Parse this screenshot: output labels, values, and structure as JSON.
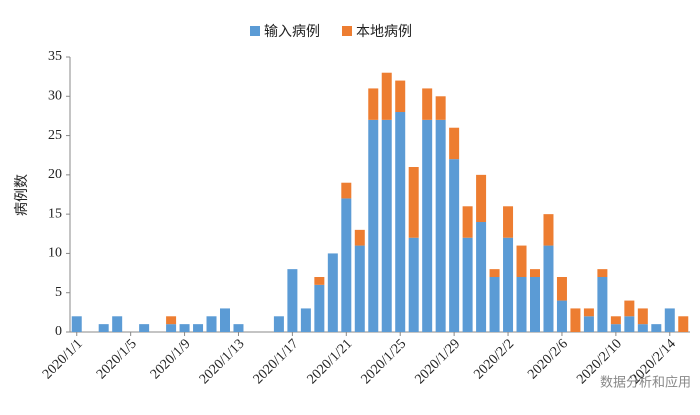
{
  "chart_data": {
    "type": "stacked_bar",
    "categories": [
      "2020/1/1",
      null,
      null,
      null,
      "2020/1/5",
      null,
      null,
      null,
      "2020/1/9",
      null,
      null,
      null,
      "2020/1/13",
      null,
      null,
      null,
      "2020/1/17",
      null,
      null,
      null,
      "2020/1/21",
      null,
      null,
      null,
      "2020/1/25",
      null,
      null,
      null,
      "2020/1/29",
      null,
      null,
      null,
      "2020/2/2",
      null,
      null,
      null,
      "2020/2/6",
      null,
      null,
      null,
      "2020/2/10",
      null,
      null,
      null,
      "2020/2/14",
      null
    ],
    "series": [
      {
        "name": "输入病例",
        "color": "#5b9bd5",
        "values": [
          2,
          0,
          1,
          2,
          0,
          1,
          0,
          1,
          1,
          1,
          2,
          3,
          1,
          0,
          0,
          2,
          8,
          3,
          6,
          10,
          17,
          11,
          27,
          27,
          28,
          12,
          27,
          27,
          22,
          12,
          14,
          7,
          12,
          7,
          7,
          11,
          4,
          0,
          2,
          7,
          1,
          2,
          1,
          1,
          3,
          0
        ]
      },
      {
        "name": "本地病例",
        "color": "#ed7d31",
        "values": [
          0,
          0,
          0,
          0,
          0,
          0,
          0,
          1,
          0,
          0,
          0,
          0,
          0,
          0,
          0,
          0,
          0,
          0,
          1,
          0,
          2,
          2,
          4,
          6,
          4,
          9,
          4,
          3,
          4,
          4,
          6,
          1,
          4,
          4,
          1,
          4,
          3,
          3,
          1,
          1,
          1,
          2,
          2,
          0,
          0,
          2
        ]
      }
    ],
    "y_label": "病例数",
    "ylim": [
      0,
      35
    ],
    "yticks": [
      0,
      5,
      10,
      15,
      20,
      25,
      30,
      35
    ],
    "legend": "top",
    "watermark": "数据分析和应用"
  }
}
